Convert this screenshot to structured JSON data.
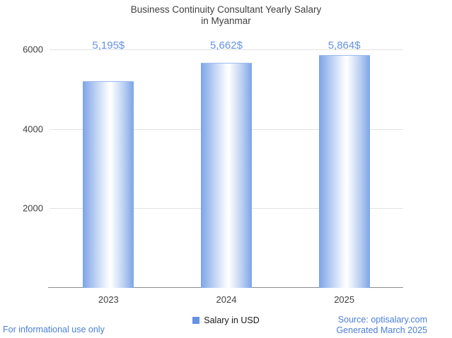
{
  "title": {
    "line1": "Business Continuity Consultant Yearly Salary",
    "line2": "in Myanmar"
  },
  "chart_data": {
    "type": "bar",
    "categories": [
      "2023",
      "2024",
      "2025"
    ],
    "values": [
      5195,
      5662,
      5864
    ],
    "value_labels": [
      "5,195$",
      "5,662$",
      "5,864$"
    ],
    "series": [
      {
        "name": "Salary in USD",
        "values": [
          5195,
          5662,
          5864
        ]
      }
    ],
    "title": "Business Continuity Consultant Yearly Salary in Myanmar",
    "xlabel": "",
    "ylabel": "",
    "ylim": [
      0,
      6000
    ],
    "yticks": [
      2000,
      4000,
      6000
    ],
    "ytick_labels_top_to_bottom": [
      "6000",
      "4000",
      "2000"
    ],
    "grid": true,
    "legend_position": "bottom"
  },
  "legend": {
    "label": "Salary in USD"
  },
  "footer": {
    "left": "For informational use only",
    "source": "Source: optisalary.com",
    "generated": "Generated March 2025"
  },
  "colors": {
    "accent_blue": "#6691e7",
    "link_blue": "#4a7ed9",
    "bar_edge": "#7da4e6",
    "bar_center": "#ffffff",
    "title_text": "#3f3f3f",
    "axis_text": "#3f3f3f",
    "gridline": "#e3e3e3",
    "baseline": "#8c8c8c"
  }
}
